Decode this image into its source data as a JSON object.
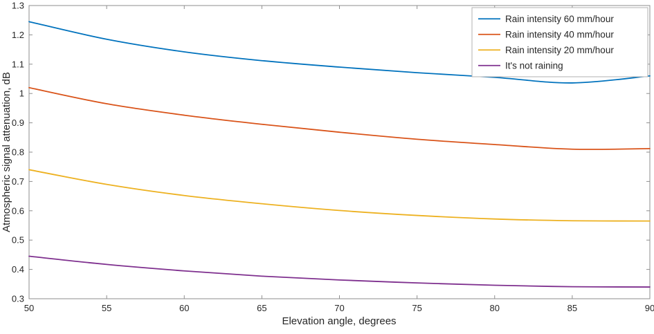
{
  "chart_data": {
    "type": "line",
    "title": "",
    "xlabel": "Elevation angle, degrees",
    "ylabel": "Atmospheric signal attenuation, dB",
    "xlim": [
      50,
      90
    ],
    "ylim": [
      0.3,
      1.3
    ],
    "xticks": [
      50,
      55,
      60,
      65,
      70,
      75,
      80,
      85,
      90
    ],
    "xtick_labels": [
      "50",
      "55",
      "60",
      "65",
      "70",
      "75",
      "80",
      "85",
      "90"
    ],
    "yticks": [
      0.3,
      0.4,
      0.5,
      0.6,
      0.7,
      0.8,
      0.9,
      1.0,
      1.1,
      1.2,
      1.3
    ],
    "ytick_labels": [
      "0.3",
      "0.4",
      "0.5",
      "0.6",
      "0.7",
      "0.8",
      "0.9",
      "1",
      "1.1",
      "1.2",
      "1.3"
    ],
    "grid": false,
    "legend_position": "top-right",
    "x": [
      50,
      55,
      60,
      65,
      70,
      75,
      80,
      85,
      90
    ],
    "series": [
      {
        "name": "Rain intensity 60 mm/hour",
        "color": "#0072BD",
        "values": [
          1.245,
          1.185,
          1.142,
          1.112,
          1.09,
          1.071,
          1.055,
          1.036,
          1.06
        ]
      },
      {
        "name": "Rain intensity 40 mm/hour",
        "color": "#D95319",
        "values": [
          1.02,
          0.965,
          0.926,
          0.895,
          0.868,
          0.844,
          0.826,
          0.81,
          0.812
        ]
      },
      {
        "name": "Rain intensity 20 mm/hour",
        "color": "#EDB120",
        "values": [
          0.74,
          0.69,
          0.652,
          0.624,
          0.601,
          0.584,
          0.572,
          0.566,
          0.565
        ]
      },
      {
        "name": "It's not raining",
        "color": "#7E2F8E",
        "values": [
          0.445,
          0.417,
          0.395,
          0.377,
          0.364,
          0.354,
          0.346,
          0.341,
          0.34
        ]
      }
    ],
    "colors": {
      "axis_box": "#8e8e8e",
      "text": "#262626",
      "legend_border": "#b0b0b0",
      "background": "#ffffff"
    }
  }
}
